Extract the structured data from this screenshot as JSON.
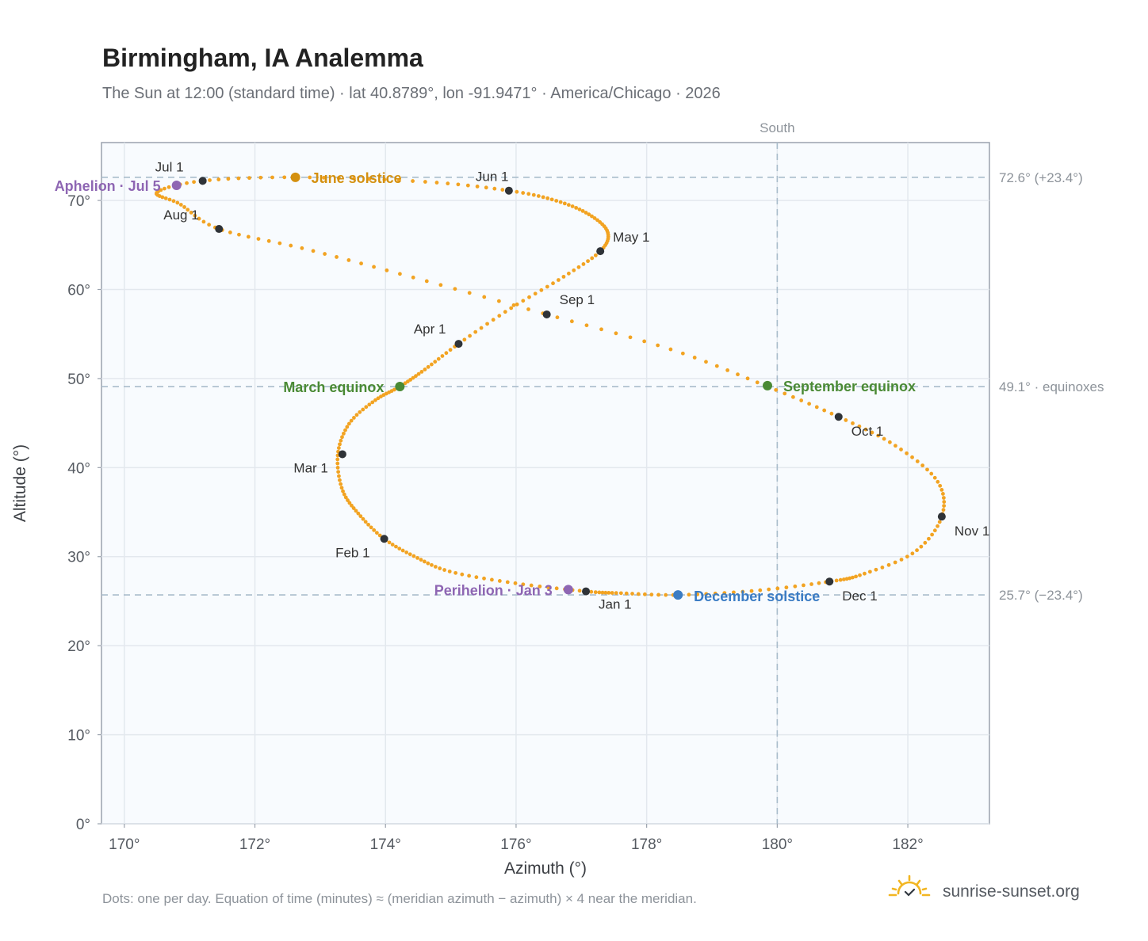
{
  "chart_data": {
    "type": "scatter",
    "title": "Birmingham, IA Analemma",
    "subtitle": "The Sun at 12:00 (standard time) · lat 40.8789°, lon -91.9471° · America/Chicago · 2026",
    "xlabel": "Azimuth (°)",
    "ylabel": "Altitude (°)",
    "xlim": [
      169.65,
      183.25
    ],
    "ylim": [
      0,
      76.5
    ],
    "x_ticks": [
      170,
      172,
      174,
      176,
      178,
      180,
      182
    ],
    "x_tick_labels": [
      "170°",
      "172°",
      "174°",
      "176°",
      "178°",
      "180°",
      "182°"
    ],
    "y_ticks": [
      0,
      10,
      20,
      30,
      40,
      50,
      60,
      70
    ],
    "y_tick_labels": [
      "0°",
      "10°",
      "20°",
      "30°",
      "40°",
      "50°",
      "60°",
      "70°"
    ],
    "grid": true,
    "vertical_reference": {
      "x": 180,
      "label": "South"
    },
    "horizontal_references": [
      {
        "y": 72.6,
        "label": "72.6° (+23.4°)"
      },
      {
        "y": 49.1,
        "label": "49.1° · equinoxes"
      },
      {
        "y": 25.7,
        "label": "25.7° (−23.4°)"
      }
    ],
    "daily_path": {
      "description": "one dot per day",
      "x_anchor": [
        177.07,
        176.0,
        175.0,
        174.45,
        173.98,
        173.6,
        173.34,
        173.27,
        173.45,
        173.85,
        174.22,
        174.6,
        175.12,
        175.9,
        176.7,
        177.29,
        177.4,
        177.1,
        176.6,
        175.89,
        174.6,
        172.65,
        171.2,
        170.5,
        170.85,
        171.45,
        172.8,
        174.5,
        176.47,
        178.4,
        179.85,
        180.94,
        181.8,
        182.45,
        182.52,
        182.1,
        181.3,
        180.8,
        179.7,
        178.5,
        177.6,
        177.07
      ],
      "y_anchor": [
        26.1,
        27.0,
        28.3,
        30.0,
        32.0,
        34.7,
        37.5,
        41.5,
        45.0,
        47.6,
        49.1,
        51.0,
        53.9,
        57.8,
        61.3,
        64.3,
        66.5,
        68.5,
        70.0,
        71.1,
        72.1,
        72.6,
        72.2,
        70.9,
        69.6,
        66.8,
        64.5,
        61.2,
        57.2,
        53.2,
        49.1,
        45.7,
        42.5,
        38.5,
        34.5,
        30.5,
        28.0,
        27.2,
        26.2,
        25.7,
        25.9,
        26.1
      ],
      "color": "#f2a322"
    },
    "month_markers": [
      {
        "label": "Jan 1",
        "x": 177.07,
        "y": 26.1
      },
      {
        "label": "Feb 1",
        "x": 173.98,
        "y": 32.0
      },
      {
        "label": "Mar 1",
        "x": 173.34,
        "y": 41.5
      },
      {
        "label": "Apr 1",
        "x": 175.12,
        "y": 53.9
      },
      {
        "label": "May 1",
        "x": 177.29,
        "y": 64.3
      },
      {
        "label": "Jun 1",
        "x": 175.89,
        "y": 71.1
      },
      {
        "label": "Jul 1",
        "x": 171.2,
        "y": 72.2
      },
      {
        "label": "Aug 1",
        "x": 171.45,
        "y": 66.8
      },
      {
        "label": "Sep 1",
        "x": 176.47,
        "y": 57.2
      },
      {
        "label": "Oct 1",
        "x": 180.94,
        "y": 45.7
      },
      {
        "label": "Nov 1",
        "x": 182.52,
        "y": 34.5
      },
      {
        "label": "Dec 1",
        "x": 180.8,
        "y": 27.2
      }
    ],
    "events": [
      {
        "label": "June solstice",
        "x": 172.62,
        "y": 72.6,
        "color": "#d4900f"
      },
      {
        "label": "March equinox",
        "x": 174.22,
        "y": 49.1,
        "color": "#4a8a35"
      },
      {
        "label": "September equinox",
        "x": 179.85,
        "y": 49.2,
        "color": "#4a8a35"
      },
      {
        "label": "December solstice",
        "x": 178.48,
        "y": 25.7,
        "color": "#3b7cc4"
      },
      {
        "label": "Aphelion · Jul 5",
        "x": 170.8,
        "y": 71.7,
        "color": "#8e66b3"
      },
      {
        "label": "Perihelion · Jan 3",
        "x": 176.8,
        "y": 26.3,
        "color": "#8e66b3"
      }
    ],
    "footnote": "Dots: one per day. Equation of time (minutes) ≈ (meridian azimuth − azimuth) × 4 near the meridian.",
    "brand": "sunrise-sunset.org"
  }
}
